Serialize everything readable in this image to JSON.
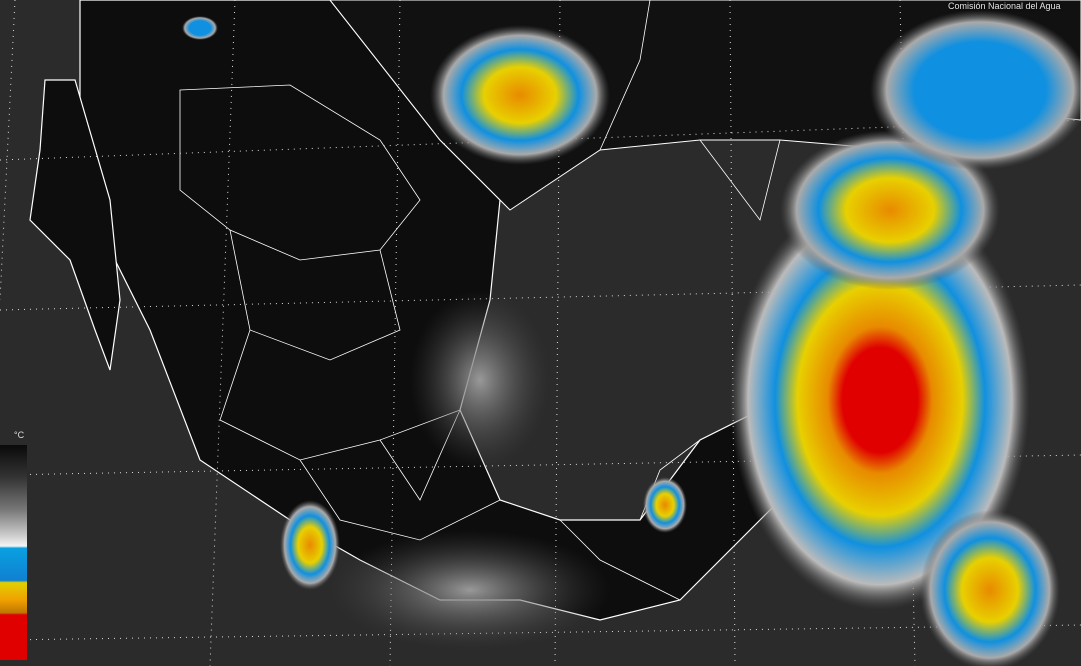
{
  "map": {
    "product": "infrared satellite image",
    "region": "Mexico and Gulf of Mexico",
    "credit": "Comisión Nacional del Agua",
    "colors": {
      "land": "#0d0d0d",
      "ocean": "#2b2b2b",
      "borders": "#ffffff",
      "cold_cloud_blue": "#1090e0",
      "yellow": "#e8d000",
      "orange": "#e08800",
      "red": "#e00000"
    }
  },
  "legend": {
    "unit": "°C",
    "scale": [
      "black",
      "gray",
      "white",
      "blue",
      "yellow",
      "orange",
      "red"
    ]
  }
}
